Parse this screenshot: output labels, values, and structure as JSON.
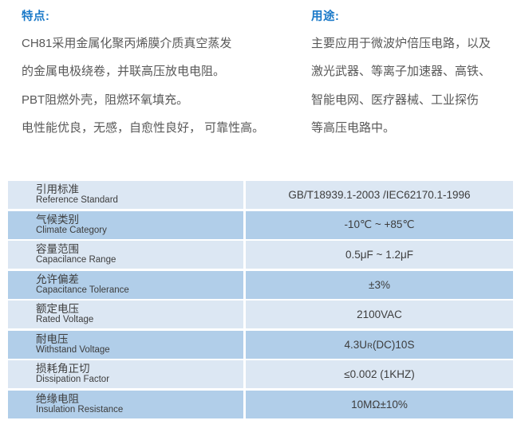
{
  "features": {
    "title": "特点:",
    "lines": [
      "CH81采用金属化聚丙烯膜介质真空蒸发",
      "的金属电极绕卷，并联高压放电电阻。",
      "PBT阻燃外壳，阻燃环氧填充。",
      "电性能优良，无感，自愈性良好， 可靠性高。"
    ]
  },
  "applications": {
    "title": "用途:",
    "lines": [
      "主要应用于微波炉倍压电路，以及",
      "激光武器、等离子加速器、高铁、",
      "智能电网、医疗器械、工业探伤",
      "等高压电路中。"
    ]
  },
  "table": {
    "rows": [
      {
        "label_zh": "引用标准",
        "label_en": "Reference Standard",
        "value": "GB/T18939.1-2003 /IEC62170.1-1996"
      },
      {
        "label_zh": "气候类别",
        "label_en": "Climate Category",
        "value": "-10℃ ~ +85℃"
      },
      {
        "label_zh": "容量范围",
        "label_en": "Capacilance Range",
        "value": "0.5μF ~ 1.2μF"
      },
      {
        "label_zh": "允许偏差",
        "label_en": "Capacitance Tolerance",
        "value": "±3%"
      },
      {
        "label_zh": "额定电压",
        "label_en": "Rated Voltage",
        "value": "2100VAC"
      },
      {
        "label_zh": "耐电压",
        "label_en": "Withstand Voltage",
        "value_parts": {
          "pre": "4.3U",
          "sub": "R",
          "post": "(DC)10S"
        }
      },
      {
        "label_zh": "损耗角正切",
        "label_en": "Dissipation Factor",
        "value": "≤0.002 (1KHZ)"
      },
      {
        "label_zh": "绝缘电阻",
        "label_en": "Insulation Resistance",
        "value": "10MΩ±10%"
      }
    ]
  },
  "colors": {
    "heading": "#1878c8",
    "body_text": "#595959",
    "table_text": "#3d3d3d",
    "row_light": "#dce7f3",
    "row_dark": "#b1cee9"
  }
}
